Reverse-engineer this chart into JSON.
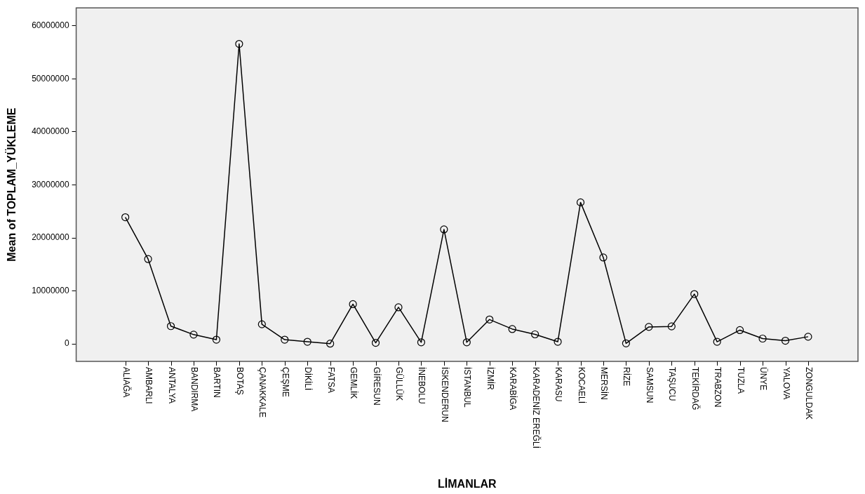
{
  "chart_data": {
    "type": "line",
    "xlabel": "LİMANLAR",
    "ylabel": "Mean of TOPLAM_YÜKLEME",
    "categories": [
      "ALİAĞA",
      "AMBARLI",
      "ANTALYA",
      "BANDIRMA",
      "BARTIN",
      "BOTAŞ",
      "ÇANAKKALE",
      "ÇEŞME",
      "DİKİLİ",
      "FATSA",
      "GEMLİK",
      "GİRESUN",
      "GÜLLÜK",
      "İNEBOLU",
      "İSKENDERUN",
      "İSTANBUL",
      "İZMİR",
      "KARABİGA",
      "KARADENİZ EREĞLİ",
      "KARASU",
      "KOCAELİ",
      "MERSİN",
      "RİZE",
      "SAMSUN",
      "TAŞUCU",
      "TEKİRDAĞ",
      "TRABZON",
      "TUZLA",
      "ÜNYE",
      "YALOVA",
      "ZONGULDAK"
    ],
    "values": [
      23900000,
      16000000,
      3350000,
      1750000,
      800000,
      56600000,
      3700000,
      800000,
      400000,
      50000,
      7500000,
      200000,
      6900000,
      300000,
      21600000,
      300000,
      4600000,
      2800000,
      1800000,
      400000,
      26700000,
      16300000,
      100000,
      3200000,
      3300000,
      9400000,
      400000,
      2600000,
      1000000,
      600000,
      1350000
    ],
    "color": "#000000",
    "marker": "circle",
    "line_style": "solid",
    "grid": false,
    "legend": false,
    "ylim": [
      -3300000,
      63400000
    ],
    "yticks": [
      0,
      10000000,
      20000000,
      30000000,
      40000000,
      50000000,
      60000000
    ]
  }
}
